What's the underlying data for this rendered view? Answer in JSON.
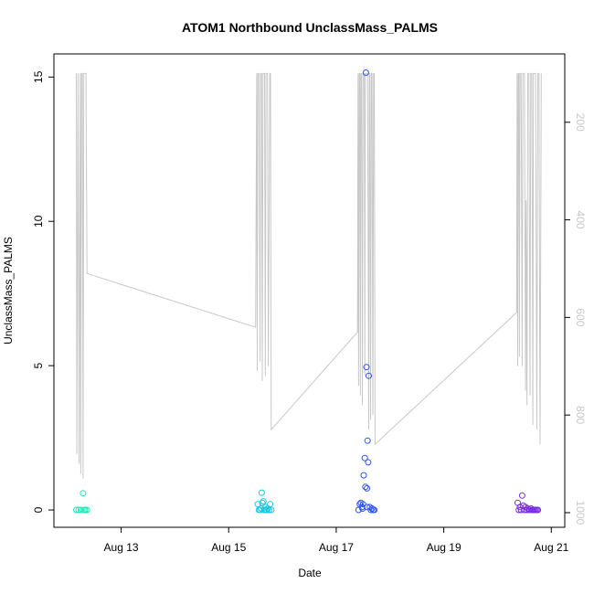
{
  "chart_data": {
    "type": "scatter",
    "title": "ATOM1 Northbound UnclassMass_PALMS",
    "xlabel": "Date",
    "ylabel": "UnclassMass_PALMS",
    "xlim": [
      "2016-08-11T18:00",
      "2016-08-21T06:00"
    ],
    "ylim": [
      -0.6,
      15.8
    ],
    "x_ticks": [
      "2016-08-13",
      "2016-08-15",
      "2016-08-17",
      "2016-08-19",
      "2016-08-21"
    ],
    "x_tick_labels": [
      "Aug 13",
      "Aug 15",
      "Aug 17",
      "Aug 19",
      "Aug 21"
    ],
    "y_ticks": [
      0,
      5,
      10,
      15
    ],
    "y_tick_labels": [
      "0",
      "5",
      "10",
      "15"
    ],
    "right_axis": {
      "note": "secondary axis (altitude/pressure), inverted",
      "ticks": [
        200,
        400,
        600,
        800,
        1000
      ],
      "tick_labels": [
        "200",
        "400",
        "600",
        "800",
        "1000"
      ],
      "lim": [
        60,
        1030
      ],
      "inverted": true,
      "color": "#c8c8c8"
    },
    "grid": false,
    "legend": "none",
    "series": [
      {
        "color": "#1de9b6",
        "points": [
          [
            "2016-08-12T04:00",
            0.0
          ],
          [
            "2016-08-12T05:00",
            0.0
          ],
          [
            "2016-08-12T06:00",
            0.0
          ],
          [
            "2016-08-12T07:00",
            0.58
          ],
          [
            "2016-08-12T07:30",
            0.0
          ],
          [
            "2016-08-12T08:00",
            0.0
          ],
          [
            "2016-08-12T08:45",
            0.0
          ]
        ]
      },
      {
        "color": "#1cc7e6",
        "points": [
          [
            "2016-08-15T13:00",
            0.2
          ],
          [
            "2016-08-15T13:30",
            0.0
          ],
          [
            "2016-08-15T14:00",
            0.0
          ],
          [
            "2016-08-15T14:30",
            0.05
          ],
          [
            "2016-08-15T14:45",
            0.6
          ],
          [
            "2016-08-15T15:00",
            0.25
          ],
          [
            "2016-08-15T15:30",
            0.3
          ],
          [
            "2016-08-15T16:00",
            0.0
          ],
          [
            "2016-08-15T16:30",
            0.1
          ],
          [
            "2016-08-15T17:00",
            0.0
          ],
          [
            "2016-08-15T17:30",
            0.05
          ],
          [
            "2016-08-15T18:00",
            0.0
          ],
          [
            "2016-08-15T18:30",
            0.2
          ],
          [
            "2016-08-15T19:00",
            0.0
          ],
          [
            "2016-08-15T16:45",
            0.0
          ],
          [
            "2016-08-15T15:45",
            0.0
          ]
        ]
      },
      {
        "color": "#2f55e8",
        "points": [
          [
            "2016-08-17T10:00",
            0.0
          ],
          [
            "2016-08-17T10:30",
            0.2
          ],
          [
            "2016-08-17T11:00",
            0.25
          ],
          [
            "2016-08-17T11:30",
            0.1
          ],
          [
            "2016-08-17T12:00",
            0.2
          ],
          [
            "2016-08-17T12:15",
            1.2
          ],
          [
            "2016-08-17T12:45",
            1.8
          ],
          [
            "2016-08-17T13:00",
            0.8
          ],
          [
            "2016-08-17T13:15",
            15.15
          ],
          [
            "2016-08-17T13:30",
            4.95
          ],
          [
            "2016-08-17T13:45",
            0.75
          ],
          [
            "2016-08-17T14:00",
            2.4
          ],
          [
            "2016-08-17T14:15",
            1.65
          ],
          [
            "2016-08-17T14:30",
            4.65
          ],
          [
            "2016-08-17T15:00",
            0.1
          ],
          [
            "2016-08-17T15:30",
            0.0
          ],
          [
            "2016-08-17T16:00",
            0.05
          ],
          [
            "2016-08-17T16:30",
            0.0
          ],
          [
            "2016-08-17T17:00",
            0.0
          ],
          [
            "2016-08-17T11:45",
            0.05
          ],
          [
            "2016-08-17T13:50",
            0.1
          ]
        ]
      },
      {
        "color": "#7a2de3",
        "points": [
          [
            "2016-08-20T09:00",
            0.25
          ],
          [
            "2016-08-20T09:30",
            0.0
          ],
          [
            "2016-08-20T10:00",
            0.1
          ],
          [
            "2016-08-20T10:30",
            0.0
          ],
          [
            "2016-08-20T11:00",
            0.5
          ],
          [
            "2016-08-20T11:30",
            0.15
          ],
          [
            "2016-08-20T12:00",
            0.0
          ],
          [
            "2016-08-20T12:30",
            0.1
          ],
          [
            "2016-08-20T13:00",
            0.0
          ],
          [
            "2016-08-20T13:30",
            0.05
          ],
          [
            "2016-08-20T14:00",
            0.0
          ],
          [
            "2016-08-20T14:30",
            0.0
          ],
          [
            "2016-08-20T15:00",
            0.05
          ],
          [
            "2016-08-20T15:30",
            0.0
          ],
          [
            "2016-08-20T16:00",
            0.0
          ],
          [
            "2016-08-20T16:30",
            0.0
          ],
          [
            "2016-08-20T17:00",
            0.0
          ],
          [
            "2016-08-20T17:30",
            0.0
          ],
          [
            "2016-08-20T18:00",
            0.0
          ]
        ]
      }
    ],
    "altitude_line": {
      "color": "#c8c8c8",
      "axis": "right",
      "points": [
        [
          "2016-08-12T04:00",
          100
        ],
        [
          "2016-08-12T04:15",
          880
        ],
        [
          "2016-08-12T04:45",
          100
        ],
        [
          "2016-08-12T05:15",
          900
        ],
        [
          "2016-08-12T05:45",
          100
        ],
        [
          "2016-08-12T06:00",
          920
        ],
        [
          "2016-08-12T06:20",
          100
        ],
        [
          "2016-08-12T06:40",
          100
        ],
        [
          "2016-08-12T07:00",
          930
        ],
        [
          "2016-08-12T07:20",
          100
        ],
        [
          "2016-08-12T08:00",
          100
        ],
        [
          "2016-08-12T08:20",
          100
        ],
        [
          "2016-08-12T08:45",
          510
        ],
        [
          "2016-08-15T12:00",
          620
        ],
        [
          "2016-08-15T12:30",
          100
        ],
        [
          "2016-08-15T12:45",
          710
        ],
        [
          "2016-08-15T13:00",
          100
        ],
        [
          "2016-08-15T13:30",
          100
        ],
        [
          "2016-08-15T14:00",
          690
        ],
        [
          "2016-08-15T14:15",
          100
        ],
        [
          "2016-08-15T14:40",
          100
        ],
        [
          "2016-08-15T15:00",
          730
        ],
        [
          "2016-08-15T15:20",
          100
        ],
        [
          "2016-08-15T16:00",
          100
        ],
        [
          "2016-08-15T16:20",
          720
        ],
        [
          "2016-08-15T16:40",
          100
        ],
        [
          "2016-08-15T17:00",
          100
        ],
        [
          "2016-08-15T17:20",
          100
        ],
        [
          "2016-08-15T17:40",
          700
        ],
        [
          "2016-08-15T18:00",
          440
        ],
        [
          "2016-08-15T18:20",
          100
        ],
        [
          "2016-08-15T18:40",
          100
        ],
        [
          "2016-08-15T19:00",
          830
        ],
        [
          "2016-08-17T09:30",
          630
        ],
        [
          "2016-08-17T09:45",
          100
        ],
        [
          "2016-08-17T10:00",
          740
        ],
        [
          "2016-08-17T10:15",
          100
        ],
        [
          "2016-08-17T10:30",
          100
        ],
        [
          "2016-08-17T10:45",
          760
        ],
        [
          "2016-08-17T11:00",
          100
        ],
        [
          "2016-08-17T11:20",
          100
        ],
        [
          "2016-08-17T11:40",
          780
        ],
        [
          "2016-08-17T12:00",
          100
        ],
        [
          "2016-08-17T12:30",
          100
        ],
        [
          "2016-08-17T12:45",
          720
        ],
        [
          "2016-08-17T13:00",
          100
        ],
        [
          "2016-08-17T14:00",
          100
        ],
        [
          "2016-08-17T14:30",
          830
        ],
        [
          "2016-08-17T14:45",
          100
        ],
        [
          "2016-08-17T15:00",
          100
        ],
        [
          "2016-08-17T15:20",
          810
        ],
        [
          "2016-08-17T15:40",
          100
        ],
        [
          "2016-08-17T16:00",
          100
        ],
        [
          "2016-08-17T16:20",
          800
        ],
        [
          "2016-08-17T16:40",
          100
        ],
        [
          "2016-08-17T17:00",
          100
        ],
        [
          "2016-08-17T17:20",
          860
        ],
        [
          "2016-08-20T08:30",
          590
        ],
        [
          "2016-08-20T08:45",
          100
        ],
        [
          "2016-08-20T09:00",
          700
        ],
        [
          "2016-08-20T09:15",
          100
        ],
        [
          "2016-08-20T09:30",
          100
        ],
        [
          "2016-08-20T09:45",
          680
        ],
        [
          "2016-08-20T10:00",
          100
        ],
        [
          "2016-08-20T10:30",
          100
        ],
        [
          "2016-08-20T11:00",
          700
        ],
        [
          "2016-08-20T11:20",
          100
        ],
        [
          "2016-08-20T12:00",
          100
        ],
        [
          "2016-08-20T12:30",
          750
        ],
        [
          "2016-08-20T12:45",
          360
        ],
        [
          "2016-08-20T13:10",
          780
        ],
        [
          "2016-08-20T13:30",
          100
        ],
        [
          "2016-08-20T14:00",
          100
        ],
        [
          "2016-08-20T14:30",
          760
        ],
        [
          "2016-08-20T14:50",
          100
        ],
        [
          "2016-08-20T15:20",
          100
        ],
        [
          "2016-08-20T15:45",
          820
        ],
        [
          "2016-08-20T16:00",
          100
        ],
        [
          "2016-08-20T16:30",
          100
        ],
        [
          "2016-08-20T17:00",
          100
        ],
        [
          "2016-08-20T17:30",
          830
        ],
        [
          "2016-08-20T18:00",
          100
        ],
        [
          "2016-08-20T18:30",
          100
        ],
        [
          "2016-08-20T19:00",
          860
        ],
        [
          "2016-08-20T19:30",
          100
        ]
      ]
    }
  }
}
